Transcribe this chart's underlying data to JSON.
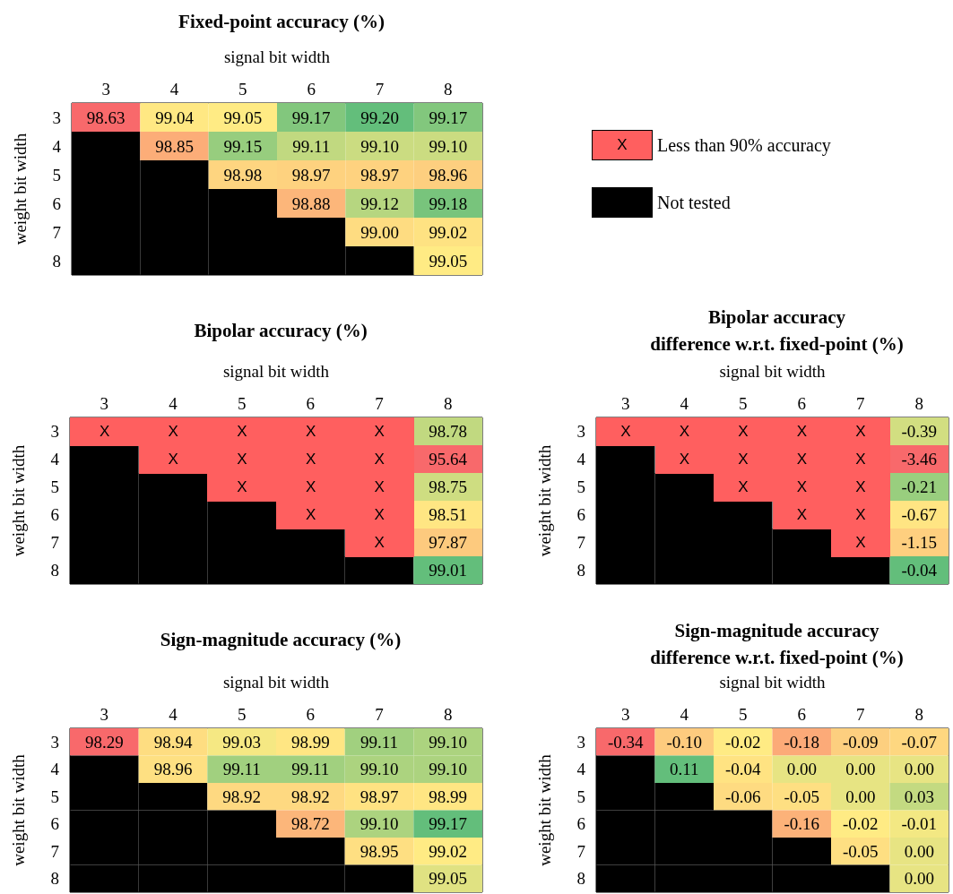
{
  "chart_data": [
    {
      "type": "heatmap",
      "title": "Fixed-point accuracy (%)",
      "xlabel": "signal bit width",
      "ylabel": "weight bit width",
      "categories": [
        "3",
        "4",
        "5",
        "6",
        "7",
        "8"
      ],
      "y_categories": [
        "3",
        "4",
        "5",
        "6",
        "7",
        "8"
      ],
      "colors": [
        "#f8696b",
        "#ffeb84",
        "#63be7b"
      ],
      "cells": [
        [
          98.63,
          99.04,
          99.05,
          99.17,
          99.2,
          99.17
        ],
        [
          null,
          98.85,
          99.15,
          99.11,
          99.1,
          99.1
        ],
        [
          null,
          null,
          98.98,
          98.97,
          98.97,
          98.96
        ],
        [
          null,
          null,
          null,
          98.88,
          99.12,
          99.18
        ],
        [
          null,
          null,
          null,
          null,
          99.0,
          99.02
        ],
        [
          null,
          null,
          null,
          null,
          null,
          99.05
        ]
      ],
      "cell_labels": [
        [
          "98.63",
          "99.04",
          "99.05",
          "99.17",
          "99.20",
          "99.17"
        ],
        [
          null,
          "98.85",
          "99.15",
          "99.11",
          "99.10",
          "99.10"
        ],
        [
          null,
          null,
          "98.98",
          "98.97",
          "98.97",
          "98.96"
        ],
        [
          null,
          null,
          null,
          "98.88",
          "99.12",
          "99.18"
        ],
        [
          null,
          null,
          null,
          null,
          "99.00",
          "99.02"
        ],
        [
          null,
          null,
          null,
          null,
          null,
          "99.05"
        ]
      ]
    },
    {
      "type": "heatmap",
      "title": "Bipolar accuracy (%)",
      "xlabel": "signal bit width",
      "ylabel": "weight bit width",
      "categories": [
        "3",
        "4",
        "5",
        "6",
        "7",
        "8"
      ],
      "y_categories": [
        "3",
        "4",
        "5",
        "6",
        "7",
        "8"
      ],
      "colors": [
        "#f8696b",
        "#ffeb84",
        "#63be7b"
      ],
      "cells": [
        [
          null,
          null,
          null,
          null,
          null,
          98.78
        ],
        [
          null,
          null,
          null,
          null,
          null,
          95.64
        ],
        [
          null,
          null,
          null,
          null,
          null,
          98.75
        ],
        [
          null,
          null,
          null,
          null,
          null,
          98.51
        ],
        [
          null,
          null,
          null,
          null,
          null,
          97.87
        ],
        [
          null,
          null,
          null,
          null,
          null,
          99.01
        ]
      ],
      "cell_labels": [
        [
          "X",
          "X",
          "X",
          "X",
          "X",
          "98.78"
        ],
        [
          null,
          "X",
          "X",
          "X",
          "X",
          "95.64"
        ],
        [
          null,
          null,
          "X",
          "X",
          "X",
          "98.75"
        ],
        [
          null,
          null,
          null,
          "X",
          "X",
          "98.51"
        ],
        [
          null,
          null,
          null,
          null,
          "X",
          "97.87"
        ],
        [
          null,
          null,
          null,
          null,
          null,
          "99.01"
        ]
      ]
    },
    {
      "type": "heatmap",
      "title": "Bipolar accuracy\ndifference w.r.t. fixed-point (%)",
      "xlabel": "signal bit width",
      "ylabel": "weight bit width",
      "categories": [
        "3",
        "4",
        "5",
        "6",
        "7",
        "8"
      ],
      "y_categories": [
        "3",
        "4",
        "5",
        "6",
        "7",
        "8"
      ],
      "colors": [
        "#f8696b",
        "#ffeb84",
        "#63be7b"
      ],
      "cells": [
        [
          null,
          null,
          null,
          null,
          null,
          -0.39
        ],
        [
          null,
          null,
          null,
          null,
          null,
          -3.46
        ],
        [
          null,
          null,
          null,
          null,
          null,
          -0.21
        ],
        [
          null,
          null,
          null,
          null,
          null,
          -0.67
        ],
        [
          null,
          null,
          null,
          null,
          null,
          -1.15
        ],
        [
          null,
          null,
          null,
          null,
          null,
          -0.04
        ]
      ],
      "cell_labels": [
        [
          "X",
          "X",
          "X",
          "X",
          "X",
          "-0.39"
        ],
        [
          null,
          "X",
          "X",
          "X",
          "X",
          "-3.46"
        ],
        [
          null,
          null,
          "X",
          "X",
          "X",
          "-0.21"
        ],
        [
          null,
          null,
          null,
          "X",
          "X",
          "-0.67"
        ],
        [
          null,
          null,
          null,
          null,
          "X",
          "-1.15"
        ],
        [
          null,
          null,
          null,
          null,
          null,
          "-0.04"
        ]
      ]
    },
    {
      "type": "heatmap",
      "title": "Sign-magnitude accuracy (%)",
      "xlabel": "signal bit width",
      "ylabel": "weight bit width",
      "categories": [
        "3",
        "4",
        "5",
        "6",
        "7",
        "8"
      ],
      "y_categories": [
        "3",
        "4",
        "5",
        "6",
        "7",
        "8"
      ],
      "colors": [
        "#f8696b",
        "#ffeb84",
        "#63be7b"
      ],
      "cells": [
        [
          98.29,
          98.94,
          99.03,
          98.99,
          99.11,
          99.1
        ],
        [
          null,
          98.96,
          99.11,
          99.11,
          99.1,
          99.1
        ],
        [
          null,
          null,
          98.92,
          98.92,
          98.97,
          98.99
        ],
        [
          null,
          null,
          null,
          98.72,
          99.1,
          99.17
        ],
        [
          null,
          null,
          null,
          null,
          98.95,
          99.02
        ],
        [
          null,
          null,
          null,
          null,
          null,
          99.05
        ]
      ],
      "cell_labels": [
        [
          "98.29",
          "98.94",
          "99.03",
          "98.99",
          "99.11",
          "99.10"
        ],
        [
          null,
          "98.96",
          "99.11",
          "99.11",
          "99.10",
          "99.10"
        ],
        [
          null,
          null,
          "98.92",
          "98.92",
          "98.97",
          "98.99"
        ],
        [
          null,
          null,
          null,
          "98.72",
          "99.10",
          "99.17"
        ],
        [
          null,
          null,
          null,
          null,
          "98.95",
          "99.02"
        ],
        [
          null,
          null,
          null,
          null,
          null,
          "99.05"
        ]
      ]
    },
    {
      "type": "heatmap",
      "title": "Sign-magnitude accuracy\ndifference w.r.t. fixed-point (%)",
      "xlabel": "signal bit width",
      "ylabel": "weight bit width",
      "categories": [
        "3",
        "4",
        "5",
        "6",
        "7",
        "8"
      ],
      "y_categories": [
        "3",
        "4",
        "5",
        "6",
        "7",
        "8"
      ],
      "colors": [
        "#f8696b",
        "#ffeb84",
        "#63be7b"
      ],
      "cells": [
        [
          -0.34,
          -0.1,
          -0.02,
          -0.18,
          -0.09,
          -0.07
        ],
        [
          null,
          0.11,
          -0.04,
          0.0,
          0.0,
          0.0
        ],
        [
          null,
          null,
          -0.06,
          -0.05,
          0.0,
          0.03
        ],
        [
          null,
          null,
          null,
          -0.16,
          -0.02,
          -0.01
        ],
        [
          null,
          null,
          null,
          null,
          -0.05,
          0.0
        ],
        [
          null,
          null,
          null,
          null,
          null,
          0.0
        ]
      ],
      "cell_labels": [
        [
          "-0.34",
          "-0.10",
          "-0.02",
          "-0.18",
          "-0.09",
          "-0.07"
        ],
        [
          null,
          "0.11",
          "-0.04",
          "0.00",
          "0.00",
          "0.00"
        ],
        [
          null,
          null,
          "-0.06",
          "-0.05",
          "0.00",
          "0.03"
        ],
        [
          null,
          null,
          null,
          "-0.16",
          "-0.02",
          "-0.01"
        ],
        [
          null,
          null,
          null,
          null,
          "-0.05",
          "0.00"
        ],
        [
          null,
          null,
          null,
          null,
          null,
          "0.00"
        ]
      ]
    },
    {
      "type": "other",
      "categories": [
        "Less than 90% accuracy",
        "Not tested"
      ],
      "colors": [
        "#ff5f5f",
        "#000000"
      ],
      "cell_labels": [
        [
          "X"
        ],
        [
          null
        ]
      ]
    }
  ]
}
